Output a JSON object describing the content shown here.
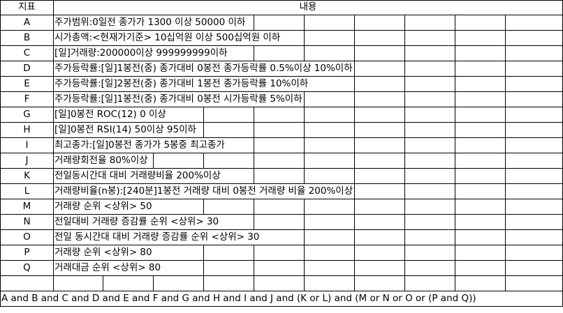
{
  "header": {
    "indicator": "지표",
    "content": "내용"
  },
  "rows": [
    {
      "indicator": "A",
      "condition": "주가범위:0일전 종가가 1300 이상 50000 이하"
    },
    {
      "indicator": "B",
      "condition": "시가총액:<현재가기준> 10십억원 이상 500십억원 이하"
    },
    {
      "indicator": "C",
      "condition": "[일]거래량:200000이상 999999999이하"
    },
    {
      "indicator": "D",
      "condition": "주가등락률:[일]1봉전(중) 종가대비 0봉전 종가등락률 0.5%이상 10%이하"
    },
    {
      "indicator": "E",
      "condition": "주가등락률:[일]2봉전(중) 종가대비 1봉전 종가등락률 10%이하"
    },
    {
      "indicator": "F",
      "condition": "주가등락률:[일]1봉전(중) 종가대비 0봉전 시가등락률 5%이하"
    },
    {
      "indicator": "G",
      "condition": "[일]0봉전 ROC(12) 0 이상"
    },
    {
      "indicator": "H",
      "condition": "[일]0봉전 RSI(14) 50이상 95이하"
    },
    {
      "indicator": "I",
      "condition": "최고종가:[일]0봉전 종가가 5봉중 최고종가"
    },
    {
      "indicator": "J",
      "condition": "거래량회전율 80%이상"
    },
    {
      "indicator": "K",
      "condition": "전일동시간대 대비 거래량비율 200%이상"
    },
    {
      "indicator": "L",
      "condition": "거래량비율(n봉):[240분]1봉전 거래량 대비 0봉전 거래량 비율 200%이상"
    },
    {
      "indicator": "M",
      "condition": "거래량 순위 <상위> 50"
    },
    {
      "indicator": "N",
      "condition": "전일대비 거래량 증감률 순위 <상위> 30"
    },
    {
      "indicator": "O",
      "condition": "전일 동시간대 대비 거래량 증감률 순위 <상위> 30"
    },
    {
      "indicator": "P",
      "condition": "거래량 순위 <상위> 80"
    },
    {
      "indicator": "Q",
      "condition": "거래대금 순위 <상위> 80"
    }
  ],
  "formula": "A and B and C and D and E and F and G and H and I and J and (K or L) and (M or N or O or (P and Q))"
}
